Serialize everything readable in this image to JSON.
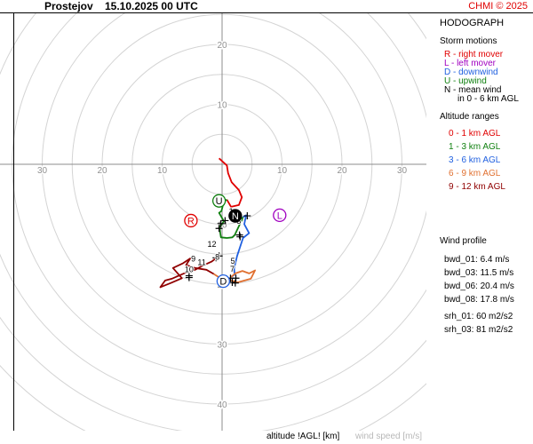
{
  "header": {
    "station": "Prostejov",
    "datetime": "15.10.2025 00 UTC",
    "copyright": "CHMI © 2025"
  },
  "panel": {
    "title": "HODOGRAPH",
    "storm_title": "Storm motions",
    "storm_items": [
      {
        "text": "R - right mover",
        "color": "#e00000"
      },
      {
        "text": "L - left mover",
        "color": "#a000c0"
      },
      {
        "text": "D - downwind",
        "color": "#2060e0"
      },
      {
        "text": "U - upwind",
        "color": "#108010"
      },
      {
        "text": "N - mean wind",
        "color": "#000000"
      },
      {
        "text": "in 0 - 6 km AGL",
        "color": "#000000"
      }
    ],
    "alt_title": "Altitude ranges",
    "alt_items": [
      {
        "text": "0 - 1 km AGL",
        "color": "#e00000"
      },
      {
        "text": "1 - 3 km AGL",
        "color": "#108010"
      },
      {
        "text": "3 - 6 km AGL",
        "color": "#2060e0"
      },
      {
        "text": "6 - 9 km AGL",
        "color": "#e07030"
      },
      {
        "text": "9 - 12 km AGL",
        "color": "#900000"
      }
    ],
    "profile_title": "Wind profile",
    "stats": [
      "bwd_01: 6.4 m/s",
      "bwd_03: 11.5 m/s",
      "bwd_06: 20.4 m/s",
      "bwd_08: 17.8 m/s",
      "srh_01: 60 m2/s2",
      "srh_03: 81 m2/s2"
    ]
  },
  "footer": {
    "altitude_label": "altitude !AGL! [km]",
    "speed_label": "wind speed [m/s]"
  },
  "chart_data": {
    "type": "scatter",
    "title": "HODOGRAPH",
    "rings": [
      5,
      10,
      15,
      20,
      25,
      30,
      35,
      40,
      45,
      50
    ],
    "ring_labels": [
      {
        "text": "20",
        "u": 0,
        "v": 20
      },
      {
        "text": "10",
        "u": 0,
        "v": 10
      },
      {
        "text": "30",
        "u": -30,
        "v": 0
      },
      {
        "text": "20",
        "u": -20,
        "v": 0
      },
      {
        "text": "10",
        "u": -10,
        "v": 0
      },
      {
        "text": "10",
        "u": 10,
        "v": 0
      },
      {
        "text": "20",
        "u": 20,
        "v": 0
      },
      {
        "text": "30",
        "u": 30,
        "v": 0
      },
      {
        "text": "10",
        "u": 0,
        "v": -10
      },
      {
        "text": "20",
        "u": 0,
        "v": -20
      },
      {
        "text": "30",
        "u": 0,
        "v": -30
      },
      {
        "text": "40",
        "u": 0,
        "v": -40
      }
    ],
    "segments": [
      {
        "color": "#e00000",
        "points": [
          [
            -0.5,
            1
          ],
          [
            0.8,
            -0.2
          ],
          [
            1,
            -1.5
          ],
          [
            1.6,
            -3
          ],
          [
            2.8,
            -4.3
          ],
          [
            3.3,
            -5.5
          ],
          [
            2.8,
            -6.8
          ],
          [
            1.5,
            -7.1
          ],
          [
            0.8,
            -5.9
          ]
        ]
      },
      {
        "color": "#108010",
        "points": [
          [
            0.8,
            -5.9
          ],
          [
            0.3,
            -6.2
          ],
          [
            -0.1,
            -7.8
          ],
          [
            -0.5,
            -8.1
          ],
          [
            0.3,
            -9.5
          ],
          [
            -0.4,
            -10.5
          ],
          [
            -0.3,
            -11.5
          ],
          [
            -0.2,
            -12.2
          ],
          [
            0.8,
            -12.3
          ],
          [
            1.7,
            -12.2
          ],
          [
            2.1,
            -11.8
          ],
          [
            3,
            -9.9
          ],
          [
            3.5,
            -8.8
          ]
        ]
      },
      {
        "color": "#2060e0",
        "points": [
          [
            3.5,
            -8.8
          ],
          [
            4,
            -8.5
          ],
          [
            3.7,
            -10
          ],
          [
            4.5,
            -11.5
          ],
          [
            3.5,
            -12.3
          ],
          [
            2.5,
            -15.3
          ],
          [
            2,
            -17.4
          ],
          [
            2.1,
            -18.4
          ],
          [
            1.5,
            -18.8
          ]
        ]
      },
      {
        "color": "#e07030",
        "points": [
          [
            1.5,
            -18.8
          ],
          [
            2.2,
            -18.2
          ],
          [
            3.4,
            -17.8
          ],
          [
            4.5,
            -18.2
          ],
          [
            5.5,
            -17.7
          ],
          [
            4.8,
            -19.1
          ],
          [
            2.6,
            -19.7
          ],
          [
            1.3,
            -19.3
          ],
          [
            -0.6,
            -18.8
          ],
          [
            -1.4,
            -18.3
          ]
        ]
      },
      {
        "color": "#900000",
        "points": [
          [
            -1.4,
            -18.3
          ],
          [
            -2.6,
            -17.6
          ],
          [
            -4.5,
            -17.3
          ],
          [
            -6,
            -16.8
          ],
          [
            -5.3,
            -15.7
          ],
          [
            -6.5,
            -16.5
          ],
          [
            -8.2,
            -17.3
          ],
          [
            -6.7,
            -19
          ],
          [
            -8.5,
            -19.8
          ],
          [
            -10.3,
            -20.5
          ],
          [
            -9.5,
            -19.4
          ],
          [
            -8.4,
            -19.1
          ],
          [
            -6.1,
            -18.1
          ],
          [
            -4.5,
            -17.6
          ],
          [
            -3.2,
            -16.9
          ],
          [
            -1.7,
            -16.2
          ],
          [
            -0.7,
            -15.4
          ]
        ]
      }
    ],
    "altitude_labels": [
      {
        "text": "1",
        "u": 1.5,
        "v": -8.3
      },
      {
        "text": "3",
        "u": 2.8,
        "v": -9.9
      },
      {
        "text": "5",
        "u": 1.8,
        "v": -16.6
      },
      {
        "text": "7",
        "u": 1.7,
        "v": -17.9
      },
      {
        "text": "8",
        "u": -0.8,
        "v": -15.9
      },
      {
        "text": "9",
        "u": -4.8,
        "v": -16.2
      },
      {
        "text": "10",
        "u": -5.5,
        "v": -18
      },
      {
        "text": "11",
        "u": -3.4,
        "v": -16.8
      },
      {
        "text": "12",
        "u": -1.7,
        "v": -13.8
      }
    ],
    "crosses": [
      [
        -0.2,
        -9.9
      ],
      [
        -0.5,
        -10.7
      ],
      [
        0.5,
        -9.4
      ],
      [
        2.9,
        -11.8
      ],
      [
        3,
        -12.1
      ],
      [
        4.2,
        -8.6
      ],
      [
        -1,
        -15.6
      ],
      [
        -0.5,
        -15.3
      ],
      [
        1.4,
        -19
      ],
      [
        1.7,
        -19.7
      ],
      [
        2.3,
        -19
      ],
      [
        2.2,
        -19.8
      ],
      [
        -5.5,
        -18.9
      ],
      [
        -5.5,
        -18.6
      ]
    ],
    "storm_motions": [
      {
        "label": "R",
        "u": -5.2,
        "v": -9.4,
        "color": "#e00000",
        "text_color": "#e00000",
        "fill": "#ffffff"
      },
      {
        "label": "L",
        "u": 9.6,
        "v": -8.5,
        "color": "#a000c0",
        "text_color": "#a000c0",
        "fill": "#ffffff"
      },
      {
        "label": "D",
        "u": 0.2,
        "v": -19.5,
        "color": "#2060e0",
        "text_color": "#000000",
        "fill": "#ffffff"
      },
      {
        "label": "U",
        "u": -0.5,
        "v": -6.1,
        "color": "#108010",
        "text_color": "#000000",
        "fill": "#ffffff"
      },
      {
        "label": "N",
        "u": 2.2,
        "v": -8.6,
        "color": "#000000",
        "text_color": "#ffffff",
        "fill": "#000000"
      }
    ]
  }
}
